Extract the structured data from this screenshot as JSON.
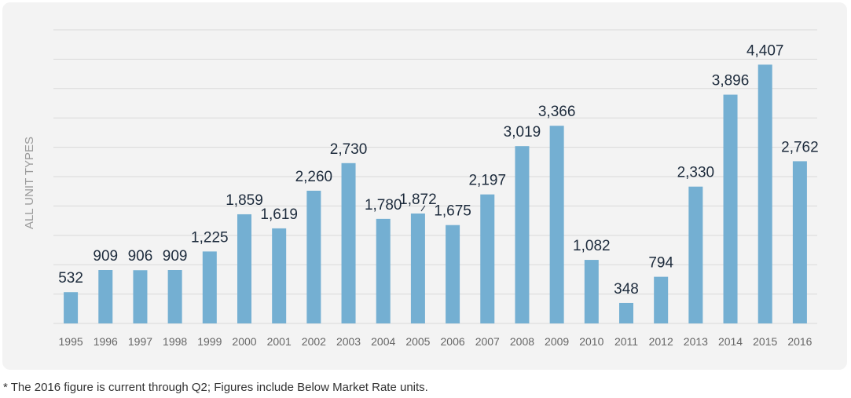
{
  "chart_data": {
    "type": "bar",
    "title": "",
    "xlabel": "",
    "ylabel": "ALL UNIT TYPES",
    "categories": [
      "1995",
      "1996",
      "1997",
      "1998",
      "1999",
      "2000",
      "2001",
      "2002",
      "2003",
      "2004",
      "2005",
      "2006",
      "2007",
      "2008",
      "2009",
      "2010",
      "2011",
      "2012",
      "2013",
      "2014",
      "2015",
      "2016"
    ],
    "values": [
      532,
      909,
      906,
      909,
      1225,
      1859,
      1619,
      2260,
      2730,
      1780,
      1872,
      1675,
      2197,
      3019,
      3366,
      1082,
      348,
      794,
      2330,
      3896,
      4407,
      2762
    ],
    "value_labels": [
      "532",
      "909",
      "906",
      "909",
      "1,225",
      "1,859",
      "1,619",
      "2,260",
      "2,730",
      "1,780",
      "1,872",
      "1,675",
      "2,197",
      "3,019",
      "3,366",
      "1,082",
      "348",
      "794",
      "2,330",
      "3,896",
      "4,407",
      "2,762"
    ],
    "ylim": [
      0,
      5000
    ],
    "grid": true,
    "y_tick_labels_shown": false,
    "bar_color": "#74afd2",
    "grid_color": "#d9d9d9",
    "label_color": "#1d2b3c",
    "tick_label_color": "#666666",
    "background_color": "#f3f3f3"
  },
  "footnote": "* The 2016 figure is current through Q2; Figures include Below Market Rate units."
}
